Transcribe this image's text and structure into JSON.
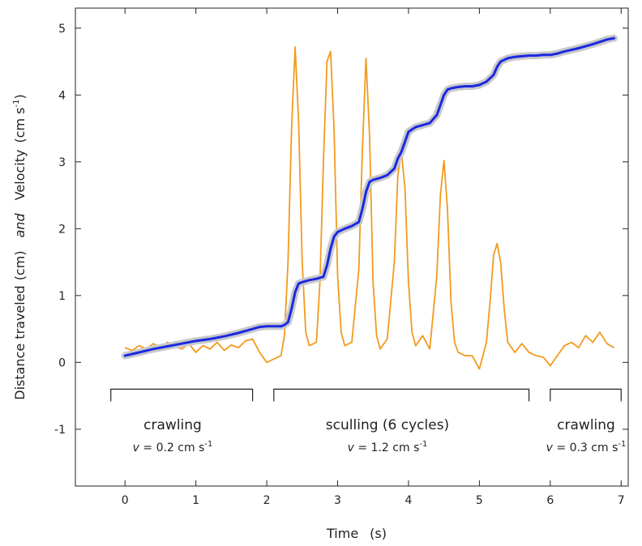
{
  "chart_data": {
    "type": "line",
    "xlabel": "Time",
    "xlabel_unit": "(s)",
    "ylabel_part1": "Distance traveled",
    "ylabel_part1_unit": "(cm)",
    "ylabel_connector": "and",
    "ylabel_part2": "Velocity",
    "ylabel_part2_unit": "(cm s",
    "ylabel_part2_sup": "-1",
    "ylabel_part2_close": ")",
    "xlim": [
      -0.7,
      7.1
    ],
    "ylim": [
      -1.85,
      5.3
    ],
    "x_ticks": [
      0,
      1,
      2,
      3,
      4,
      5,
      6,
      7
    ],
    "y_ticks": [
      -1,
      0,
      1,
      2,
      3,
      4,
      5
    ],
    "grid": false,
    "series": [
      {
        "color": "#f39a1e",
        "x": [
          0.0,
          0.1,
          0.2,
          0.3,
          0.4,
          0.5,
          0.6,
          0.7,
          0.8,
          0.9,
          1.0,
          1.1,
          1.2,
          1.3,
          1.4,
          1.5,
          1.6,
          1.7,
          1.8,
          1.9,
          2.0,
          2.1,
          2.2,
          2.25,
          2.3,
          2.35,
          2.4,
          2.45,
          2.5,
          2.55,
          2.6,
          2.7,
          2.75,
          2.8,
          2.85,
          2.9,
          2.95,
          3.0,
          3.05,
          3.1,
          3.2,
          3.3,
          3.35,
          3.4,
          3.45,
          3.5,
          3.55,
          3.6,
          3.7,
          3.8,
          3.85,
          3.9,
          3.95,
          4.0,
          4.05,
          4.1,
          4.2,
          4.3,
          4.4,
          4.45,
          4.5,
          4.55,
          4.6,
          4.65,
          4.7,
          4.8,
          4.9,
          5.0,
          5.1,
          5.15,
          5.2,
          5.25,
          5.3,
          5.35,
          5.4,
          5.5,
          5.6,
          5.7,
          5.8,
          5.9,
          6.0,
          6.1,
          6.2,
          6.3,
          6.4,
          6.5,
          6.6,
          6.7,
          6.8,
          6.9
        ],
        "values": [
          0.22,
          0.18,
          0.25,
          0.2,
          0.28,
          0.22,
          0.3,
          0.25,
          0.2,
          0.28,
          0.15,
          0.25,
          0.2,
          0.3,
          0.18,
          0.26,
          0.22,
          0.32,
          0.35,
          0.15,
          0.0,
          0.05,
          0.1,
          0.4,
          1.5,
          3.5,
          4.72,
          3.6,
          1.5,
          0.45,
          0.25,
          0.3,
          1.2,
          3.0,
          4.5,
          4.65,
          3.5,
          1.3,
          0.45,
          0.25,
          0.3,
          1.4,
          3.2,
          4.55,
          3.4,
          1.2,
          0.4,
          0.2,
          0.35,
          1.5,
          2.8,
          3.15,
          2.6,
          1.2,
          0.45,
          0.25,
          0.4,
          0.2,
          1.3,
          2.5,
          3.02,
          2.3,
          0.9,
          0.3,
          0.15,
          0.1,
          0.1,
          -0.1,
          0.3,
          0.9,
          1.6,
          1.78,
          1.5,
          0.8,
          0.3,
          0.15,
          0.28,
          0.15,
          0.1,
          0.08,
          -0.05,
          0.1,
          0.25,
          0.3,
          0.22,
          0.4,
          0.3,
          0.45,
          0.28,
          0.22
        ]
      },
      {
        "color": "#1a28e0",
        "x": [
          0.0,
          0.2,
          0.4,
          0.6,
          0.8,
          1.0,
          1.2,
          1.4,
          1.6,
          1.7,
          1.8,
          1.9,
          2.0,
          2.1,
          2.2,
          2.25,
          2.3,
          2.35,
          2.4,
          2.45,
          2.5,
          2.6,
          2.7,
          2.8,
          2.85,
          2.9,
          2.95,
          3.0,
          3.1,
          3.2,
          3.3,
          3.35,
          3.4,
          3.45,
          3.5,
          3.6,
          3.7,
          3.8,
          3.85,
          3.9,
          3.95,
          4.0,
          4.1,
          4.2,
          4.3,
          4.4,
          4.45,
          4.5,
          4.55,
          4.6,
          4.7,
          4.8,
          4.9,
          5.0,
          5.1,
          5.2,
          5.25,
          5.3,
          5.4,
          5.5,
          5.6,
          5.7,
          5.8,
          5.9,
          6.0,
          6.1,
          6.2,
          6.4,
          6.6,
          6.8,
          6.9
        ],
        "values": [
          0.1,
          0.15,
          0.2,
          0.24,
          0.28,
          0.32,
          0.35,
          0.39,
          0.44,
          0.47,
          0.5,
          0.53,
          0.54,
          0.54,
          0.54,
          0.56,
          0.6,
          0.8,
          1.05,
          1.18,
          1.2,
          1.23,
          1.25,
          1.28,
          1.45,
          1.7,
          1.88,
          1.95,
          2.0,
          2.04,
          2.1,
          2.3,
          2.55,
          2.7,
          2.73,
          2.76,
          2.8,
          2.9,
          3.05,
          3.15,
          3.3,
          3.45,
          3.52,
          3.55,
          3.58,
          3.7,
          3.85,
          4.0,
          4.08,
          4.1,
          4.12,
          4.13,
          4.13,
          4.15,
          4.2,
          4.3,
          4.42,
          4.5,
          4.55,
          4.57,
          4.58,
          4.59,
          4.59,
          4.6,
          4.6,
          4.62,
          4.65,
          4.7,
          4.76,
          4.83,
          4.85
        ]
      }
    ],
    "annotations": [
      {
        "label": "crawling",
        "v_prefix": "v",
        "v_text": " = 0.2 cm s",
        "v_sup": "-1",
        "bracket": [
          -0.2,
          1.8
        ]
      },
      {
        "label": "sculling (6 cycles)",
        "v_prefix": "v",
        "v_text": " = 1.2 cm s",
        "v_sup": "-1",
        "bracket": [
          2.1,
          5.7
        ]
      },
      {
        "label": "crawling",
        "v_prefix": "v",
        "v_text": " = 0.3 cm s",
        "v_sup": "-1",
        "bracket": [
          6.0,
          7.0
        ]
      }
    ]
  }
}
